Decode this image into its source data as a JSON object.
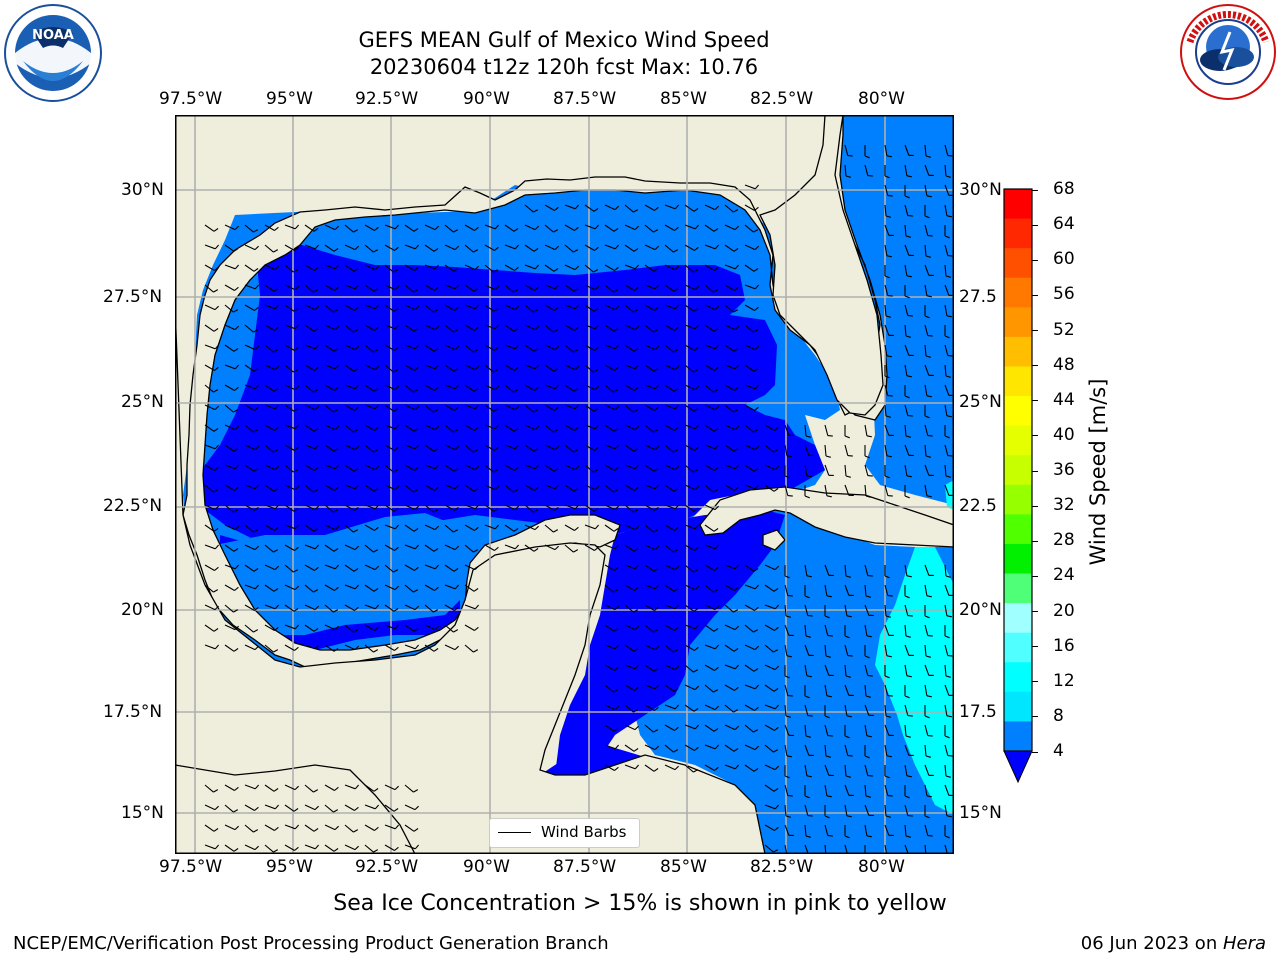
{
  "header": {
    "title_line1": "GEFS MEAN Gulf of Mexico Wind Speed",
    "title_line2": "20230604 t12z 120h fcst   Max: 10.76"
  },
  "logos": {
    "left": "NOAA",
    "left_ring_text": "NATIONAL OCEANIC AND ATMOSPHERIC ADMINISTRATION · U.S. DEPARTMENT OF COMMERCE",
    "right_ring_text": "NATIONAL WEATHER SERVICE"
  },
  "map": {
    "lon_labels": [
      "97.5°W",
      "95°W",
      "92.5°W",
      "90°W",
      "87.5°W",
      "85°W",
      "82.5°W",
      "80°W"
    ],
    "lat_labels_left": [
      "30°N",
      "27.5°N",
      "25°N",
      "22.5°N",
      "20°N",
      "17.5°N",
      "15°N"
    ],
    "lat_labels_right": [
      "30°N",
      "27.5",
      "25°N",
      "22.5",
      "20°N",
      "17.5",
      "15°N"
    ],
    "legend_label": "Wind Barbs",
    "colors": {
      "land": "#efeedd",
      "ws_4_8": "#0080ff",
      "ws_below_4": "#0000ff",
      "ws_8_12": "#00ffff",
      "grid": "#b0b0b0"
    }
  },
  "colorbar": {
    "label": "Wind Speed [m/s]",
    "ticks": [
      "68",
      "64",
      "60",
      "56",
      "52",
      "48",
      "44",
      "40",
      "36",
      "32",
      "28",
      "24",
      "20",
      "16",
      "12",
      "8",
      "4"
    ],
    "colors": [
      "#ff0000",
      "#ff2800",
      "#ff5000",
      "#ff7800",
      "#ff9600",
      "#ffbe00",
      "#ffe600",
      "#ffff00",
      "#e6ff00",
      "#c8ff00",
      "#96ff00",
      "#50ff00",
      "#00f000",
      "#50ff78",
      "#a0ffff",
      "#50ffff",
      "#00ffff",
      "#00e6ff",
      "#0080ff"
    ],
    "under_color": "#0000ff"
  },
  "notes": {
    "sea_ice": "Sea Ice Concentration > 15% is shown in pink to yellow"
  },
  "footer": {
    "left": "NCEP/EMC/Verification Post Processing Product Generation Branch",
    "right_prefix": "06 Jun 2023 on ",
    "right_machine": "Hera"
  }
}
